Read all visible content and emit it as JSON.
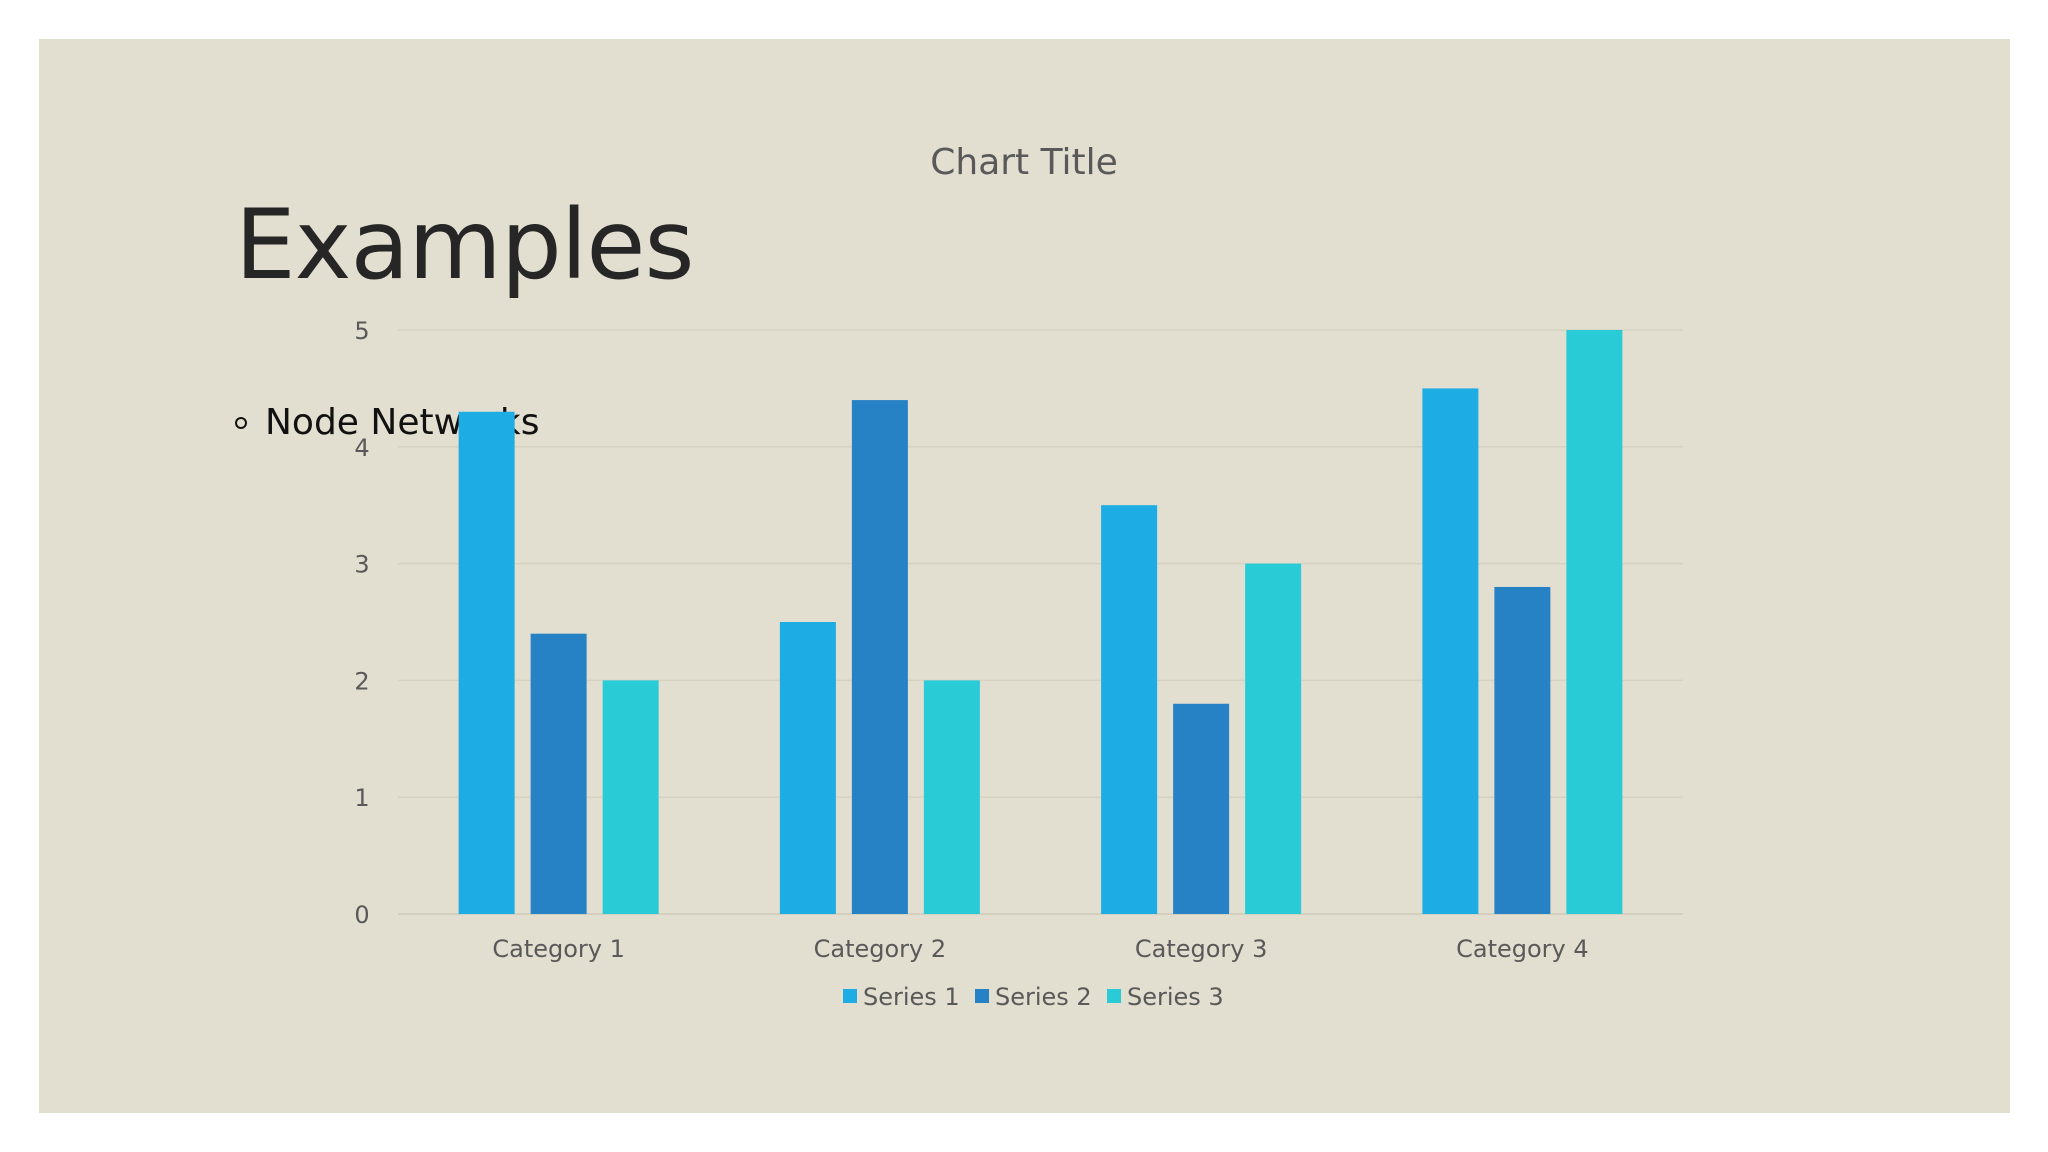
{
  "slide": {
    "title": "Examples",
    "bullets": [
      "Node Networks"
    ]
  },
  "colors": {
    "background": "#e2dfd0",
    "series": [
      "#1eace4",
      "#2682c5",
      "#28cbd6"
    ]
  },
  "chart_data": {
    "type": "bar",
    "title": "Chart Title",
    "categories": [
      "Category 1",
      "Category 2",
      "Category 3",
      "Category 4"
    ],
    "series": [
      {
        "name": "Series 1",
        "values": [
          4.3,
          2.5,
          3.5,
          4.5
        ]
      },
      {
        "name": "Series 2",
        "values": [
          2.4,
          4.4,
          1.8,
          2.8
        ]
      },
      {
        "name": "Series 3",
        "values": [
          2,
          2,
          3,
          5
        ]
      }
    ],
    "yticks": [
      "0",
      "1",
      "2",
      "3",
      "4",
      "5"
    ],
    "ylim": [
      0,
      5
    ],
    "xlabel": "",
    "ylabel": "",
    "grid": true,
    "legend": "bottom"
  }
}
